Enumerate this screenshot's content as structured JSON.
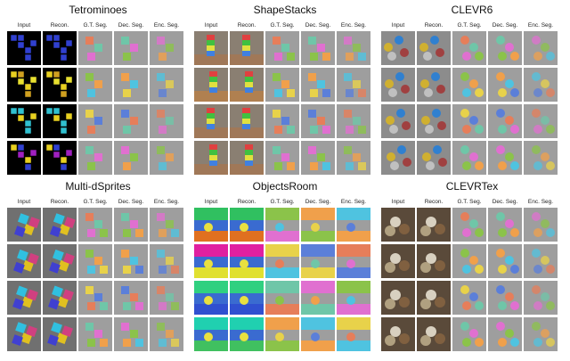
{
  "columns": [
    "Input",
    "Recon.",
    "G.T. Seg.",
    "Dec. Seg.",
    "Enc. Seg."
  ],
  "datasets": [
    {
      "name": "Tetrominoes",
      "style": "tet"
    },
    {
      "name": "ShapeStacks",
      "style": "ss"
    },
    {
      "name": "CLEVR6",
      "style": "clevr"
    },
    {
      "name": "Multi-dSprites",
      "style": "msd"
    },
    {
      "name": "ObjectsRoom",
      "style": "room"
    },
    {
      "name": "CLEVRTex",
      "style": "tex"
    }
  ],
  "colors": {
    "seg_background": "#9e9e9e",
    "seg_palette": [
      "#e8d24a",
      "#5b7fd9",
      "#e67e5a",
      "#6fc6a8",
      "#e070d0",
      "#8bc34a",
      "#f0a04b",
      "#4fc3e0"
    ]
  }
}
